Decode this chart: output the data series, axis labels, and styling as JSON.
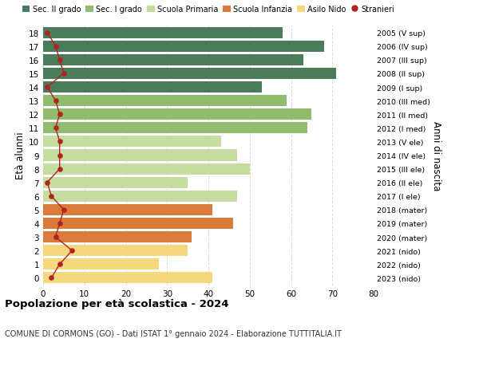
{
  "ages": [
    18,
    17,
    16,
    15,
    14,
    13,
    12,
    11,
    10,
    9,
    8,
    7,
    6,
    5,
    4,
    3,
    2,
    1,
    0
  ],
  "right_labels": [
    "2005 (V sup)",
    "2006 (IV sup)",
    "2007 (III sup)",
    "2008 (II sup)",
    "2009 (I sup)",
    "2010 (III med)",
    "2011 (II med)",
    "2012 (I med)",
    "2013 (V ele)",
    "2014 (IV ele)",
    "2015 (III ele)",
    "2016 (II ele)",
    "2017 (I ele)",
    "2018 (mater)",
    "2019 (mater)",
    "2020 (mater)",
    "2021 (nido)",
    "2022 (nido)",
    "2023 (nido)"
  ],
  "bar_values": [
    58,
    68,
    63,
    71,
    53,
    59,
    65,
    64,
    43,
    47,
    50,
    35,
    47,
    41,
    46,
    36,
    35,
    28,
    41
  ],
  "bar_colors": [
    "#4a7c59",
    "#4a7c59",
    "#4a7c59",
    "#4a7c59",
    "#4a7c59",
    "#8fbc6e",
    "#8fbc6e",
    "#8fbc6e",
    "#c5dea0",
    "#c5dea0",
    "#c5dea0",
    "#c5dea0",
    "#c5dea0",
    "#d97b3a",
    "#d97b3a",
    "#d97b3a",
    "#f5d77e",
    "#f5d77e",
    "#f5d77e"
  ],
  "stranieri_values": [
    1,
    3,
    4,
    5,
    1,
    3,
    4,
    3,
    4,
    4,
    4,
    1,
    2,
    5,
    4,
    3,
    7,
    4,
    2
  ],
  "legend_labels": [
    "Sec. II grado",
    "Sec. I grado",
    "Scuola Primaria",
    "Scuola Infanzia",
    "Asilo Nido",
    "Stranieri"
  ],
  "legend_colors": [
    "#4a7c59",
    "#8fbc6e",
    "#c5dea0",
    "#d97b3a",
    "#f5d77e",
    "#b22222"
  ],
  "title": "Popolazione per età scolastica - 2024",
  "subtitle": "COMUNE DI CORMONS (GO) - Dati ISTAT 1° gennaio 2024 - Elaborazione TUTTITALIA.IT",
  "ylabel": "Età alunni",
  "right_ylabel": "Anni di nascita",
  "xlim": [
    0,
    80
  ],
  "xticks": [
    0,
    10,
    20,
    30,
    40,
    50,
    60,
    70,
    80
  ],
  "background_color": "#ffffff",
  "grid_color": "#dddddd",
  "bar_height": 0.82
}
